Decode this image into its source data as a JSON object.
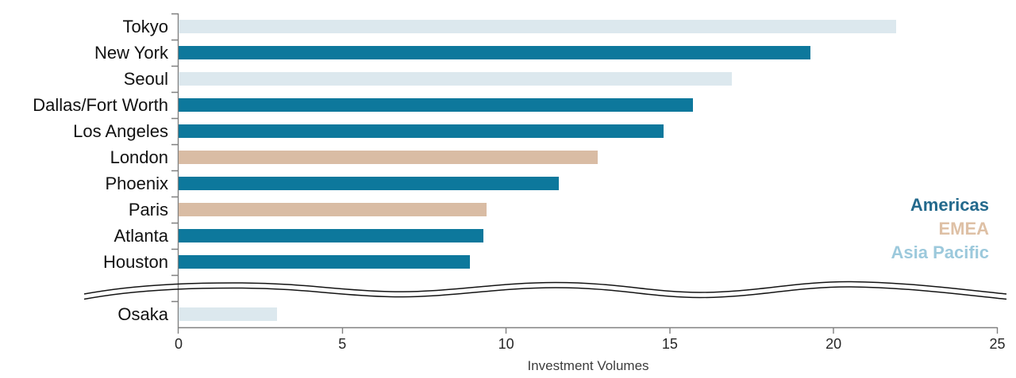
{
  "chart_data": {
    "type": "bar",
    "orientation": "horizontal",
    "title": "",
    "xlabel": "Investment Volumes",
    "xlim": [
      0,
      25
    ],
    "xticks": [
      0,
      5,
      10,
      15,
      20,
      25
    ],
    "grid": false,
    "legend_position": "right-middle",
    "legend": [
      {
        "label": "Americas",
        "color": "#23698C"
      },
      {
        "label": "EMEA",
        "color": "#DEC0A5"
      },
      {
        "label": "Asia Pacific",
        "color": "#9CC9DC"
      }
    ],
    "series_colors": {
      "americas": "#0D789C",
      "emea": "#D9BCA4",
      "asia_pacific": "#DCE8EE"
    },
    "bars": [
      {
        "label": "Tokyo",
        "value": 21.9,
        "region": "asia_pacific"
      },
      {
        "label": "New York",
        "value": 19.3,
        "region": "americas"
      },
      {
        "label": "Seoul",
        "value": 16.9,
        "region": "asia_pacific"
      },
      {
        "label": "Dallas/Fort Worth",
        "value": 15.7,
        "region": "americas"
      },
      {
        "label": "Los Angeles",
        "value": 14.8,
        "region": "americas"
      },
      {
        "label": "London",
        "value": 12.8,
        "region": "emea"
      },
      {
        "label": "Phoenix",
        "value": 11.6,
        "region": "americas"
      },
      {
        "label": "Paris",
        "value": 9.4,
        "region": "emea"
      },
      {
        "label": "Atlanta",
        "value": 9.3,
        "region": "americas"
      },
      {
        "label": "Houston",
        "value": 8.9,
        "region": "americas"
      },
      {
        "label": "Osaka",
        "value": 3.0,
        "region": "asia_pacific"
      }
    ],
    "axis_break": {
      "after_label": "Houston",
      "before_label": "Osaka"
    }
  }
}
